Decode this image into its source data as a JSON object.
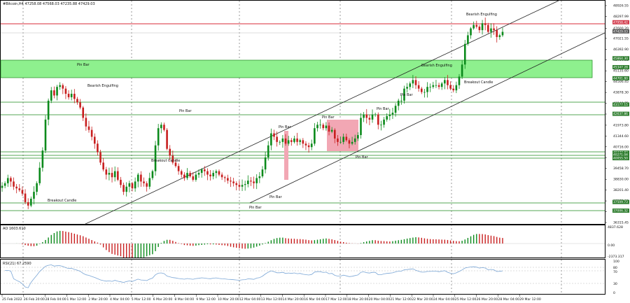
{
  "header": {
    "symbol": "#Bitcoin,H4",
    "ohlc": "47258.08 47568.03 47235.88 47429.03"
  },
  "colors": {
    "bull": "#0b8a1b",
    "bear": "#c81e1e",
    "zone": "#8ef08e",
    "zone_line": "#1c8a1c",
    "rect": "#f2a7b4",
    "red_line": "#d92b3a",
    "gray_line": "#9a9a9a",
    "rsi_line": "#7aa6d6",
    "price_tag_green": "#2e7d2e",
    "price_tag_red": "#d33d4e"
  },
  "chart_data": {
    "type": "candlestick",
    "price_axis": {
      "ticks": [
        "48926.55",
        "48297.99",
        "47600.20",
        "47021.55",
        "46392.90",
        "45764.35",
        "45135.60",
        "44506.45",
        "43878.30",
        "43249.75",
        "42621.20",
        "41973.80",
        "41344.60",
        "40716.00",
        "40087.45",
        "39458.70",
        "38830.00",
        "38201.40",
        "37572.80",
        "36944.20",
        "36315.45"
      ],
      "tags": [
        {
          "label": "47958.42",
          "color": "red"
        },
        {
          "label": "47429.03",
          "color": "gray"
        },
        {
          "label": "45864.30",
          "color": "green"
        },
        {
          "label": "45347.28",
          "color": "green"
        },
        {
          "label": "44701.80",
          "color": "green"
        },
        {
          "label": "43177.15",
          "color": "green"
        },
        {
          "label": "42637.86",
          "color": "green"
        },
        {
          "label": "40377.82",
          "color": "green"
        },
        {
          "label": "40271.04",
          "color": "green"
        },
        {
          "label": "40055.50",
          "color": "green"
        },
        {
          "label": "37509.73",
          "color": "green"
        },
        {
          "label": "37006.32",
          "color": "green"
        }
      ]
    },
    "time_axis": [
      "25 Feb 2022",
      "26 Feb 20:00",
      "28 Feb 04:00",
      "1 Mar 12:00",
      "2 Mar 20:00",
      "4 Mar 04:00",
      "5 Mar 12:00",
      "6 Mar 20:00",
      "8 Mar 04:00",
      "9 Mar 12:00",
      "10 Mar 20:00",
      "12 Mar 04:00",
      "13 Mar 12:00",
      "14 Mar 20:00",
      "16 Mar 04:00",
      "17 Mar 12:00",
      "18 Mar 20:00",
      "20 Mar 04:00",
      "21 Mar 12:00",
      "22 Mar 20:00",
      "24 Mar 04:00",
      "25 Mar 12:00",
      "26 Mar 20:00",
      "28 Mar 04:00",
      "29 Mar 12:00"
    ],
    "annotations": [
      "Pin Bar",
      "Bearish Engulfing",
      "Breakout Candle",
      "Pin Bar",
      "Breakout Candle",
      "Pin Bar",
      "Pin Bar",
      "Pin Bar",
      "Pin Bar",
      "Pin Bar",
      "Pin Bar",
      "Pin Bar",
      "Bearish Engulfing",
      "Breakout Candle",
      "Bearish Engulfing"
    ],
    "closes": [
      38450,
      38600,
      38900,
      38700,
      38400,
      38300,
      38200,
      38000,
      37500,
      37300,
      37700,
      38100,
      38600,
      39500,
      40500,
      42300,
      43400,
      44000,
      43700,
      44200,
      44300,
      44100,
      43800,
      43600,
      43800,
      43500,
      43300,
      43000,
      42400,
      41900,
      41700,
      41300,
      40900,
      40400,
      39800,
      39400,
      39100,
      39200,
      38950,
      39300,
      38800,
      38500,
      38100,
      38400,
      38600,
      38300,
      38700,
      39100,
      38700,
      38600,
      38400,
      38900,
      39300,
      40800,
      41800,
      42000,
      41700,
      40600,
      40200,
      39800,
      39600,
      39300,
      39100,
      38900,
      39200,
      39000,
      38800,
      39100,
      39200,
      39400,
      39300,
      39100,
      39000,
      39200,
      39300,
      39100,
      38950,
      38900,
      38750,
      38700,
      38600,
      38500,
      38400,
      38500,
      38550,
      38750,
      38700,
      38600,
      38900,
      39000,
      39400,
      40100,
      40800,
      41500,
      41300,
      41000,
      41000,
      41200,
      40900,
      41100,
      41000,
      41200,
      41000,
      41100,
      40900,
      40800,
      40700,
      40900,
      41800,
      42000,
      42000,
      41800,
      41950,
      41600,
      41700,
      41200,
      41000,
      41000,
      41300,
      41100,
      40900,
      41000,
      41200,
      41400,
      42400,
      42600,
      42400,
      42300,
      42600,
      42600,
      42000,
      42000,
      42300,
      42500,
      42600,
      42700,
      43100,
      43400,
      43400,
      44100,
      44200,
      44400,
      44600,
      44300,
      44100,
      43900,
      43900,
      44200,
      44200,
      44300,
      44300,
      44200,
      44400,
      44600,
      44300,
      44100,
      44000,
      44300,
      44800,
      45500,
      46700,
      47200,
      47600,
      47800,
      47700,
      47500,
      47900,
      47800,
      47400,
      47600,
      47500,
      47100,
      47200,
      47400
    ],
    "ao": {
      "ylim": [
        -2373.317,
        4837.628
      ],
      "ticks": [
        "4837.628",
        "0.00",
        "-2373.317"
      ],
      "label": "AO 1603.610"
    },
    "rsi": {
      "ticks": [
        "100",
        "80",
        "70",
        "30",
        "0"
      ],
      "label": "RSI(21) 67.2590"
    }
  }
}
